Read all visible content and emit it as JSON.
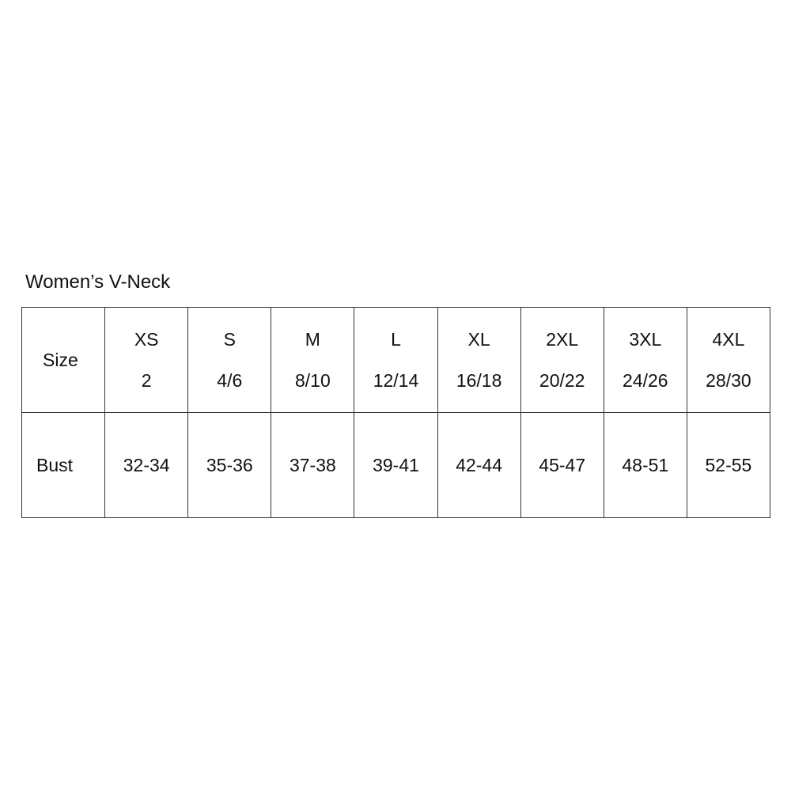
{
  "title": "Women’s V-Neck",
  "row_labels": [
    "Size",
    "Bust"
  ],
  "sizes": [
    {
      "label": "XS",
      "numeric": "2",
      "bust": "32-34"
    },
    {
      "label": "S",
      "numeric": "4/6",
      "bust": "35-36"
    },
    {
      "label": "M",
      "numeric": "8/10",
      "bust": "37-38"
    },
    {
      "label": "L",
      "numeric": "12/14",
      "bust": "39-41"
    },
    {
      "label": "XL",
      "numeric": "16/18",
      "bust": "42-44"
    },
    {
      "label": "2XL",
      "numeric": "20/22",
      "bust": "45-47"
    },
    {
      "label": "3XL",
      "numeric": "24/26",
      "bust": "48-51"
    },
    {
      "label": "4XL",
      "numeric": "28/30",
      "bust": "52-55"
    }
  ]
}
